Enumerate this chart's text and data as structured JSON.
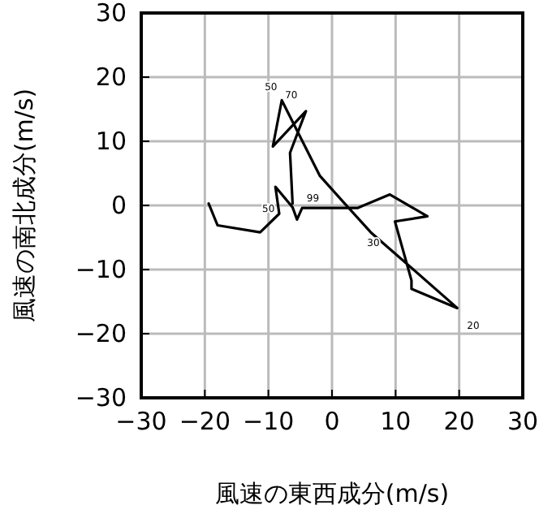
{
  "chart_data": {
    "type": "line",
    "xlabel": "風速の東西成分(m/s)",
    "ylabel": "風速の南北成分(m/s)",
    "x": [
      -19.4,
      -18.0,
      -11.3,
      -8.3,
      -8.9,
      -6.2,
      -5.5,
      -4.7,
      4.0,
      9.1,
      15.0,
      9.9,
      12.5,
      12.5,
      19.7,
      6.1,
      1.9,
      -1.9,
      -7.9,
      -9.3,
      -4.1,
      -6.6,
      -6.2
    ],
    "series": [
      {
        "color": "#000000",
        "values": [
          0.3,
          -3.1,
          -4.2,
          -1.3,
          2.9,
          -0.3,
          -2.2,
          -0.4,
          -0.4,
          1.7,
          -1.7,
          -2.5,
          -11.7,
          -13.0,
          -16.0,
          -4.2,
          0.4,
          4.6,
          16.4,
          9.2,
          14.7,
          8.2,
          0.3
        ]
      }
    ],
    "xlim": [
      -30,
      30
    ],
    "ylim": [
      -30,
      30
    ],
    "xticks": [
      {
        "value": -30,
        "label": "−30"
      },
      {
        "value": -20,
        "label": "−20"
      },
      {
        "value": -10,
        "label": "−10"
      },
      0,
      10,
      20,
      30
    ],
    "yticks": [
      {
        "value": -30,
        "label": "−30"
      },
      {
        "value": -20,
        "label": "−20"
      },
      {
        "value": -10,
        "label": "−10"
      },
      0,
      10,
      20,
      30
    ],
    "grid": true,
    "annotations": [
      "50",
      "70",
      "99",
      "50",
      "30",
      "20"
    ]
  }
}
